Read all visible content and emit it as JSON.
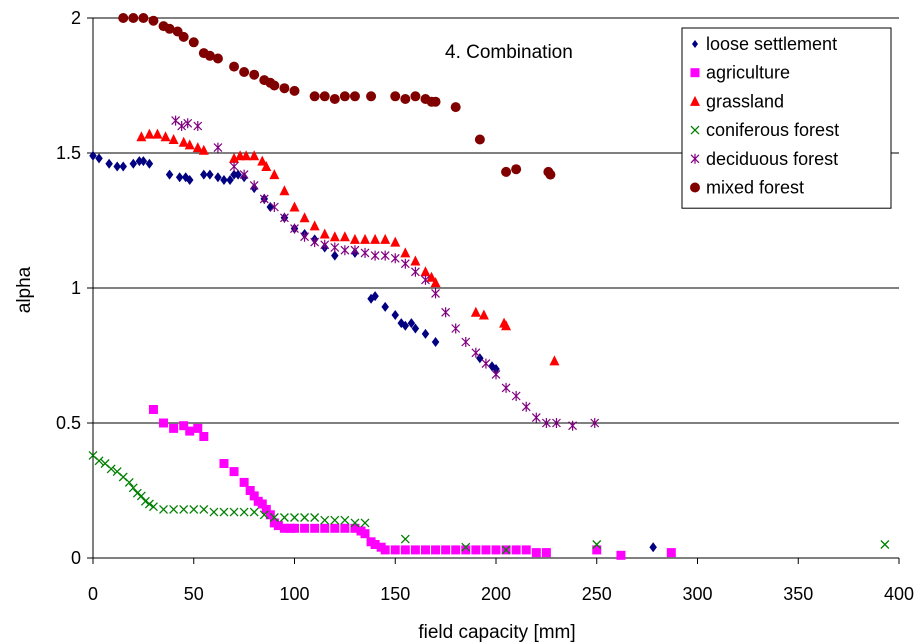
{
  "chart_data": {
    "type": "scatter",
    "title": "",
    "annotation": "4. Combination",
    "xlabel": "field capacity [mm]",
    "ylabel": "alpha",
    "xlim": [
      0,
      400
    ],
    "ylim": [
      0,
      2
    ],
    "x_ticks": [
      "0",
      "50",
      "100",
      "150",
      "200",
      "250",
      "300",
      "350",
      "400"
    ],
    "y_ticks": [
      "0",
      "0.5",
      "1",
      "1.5",
      "2"
    ],
    "grid": "horizontal",
    "legend_position": "top-right",
    "series": [
      {
        "name": "loose settlement",
        "marker": "diamond",
        "color": "#000080",
        "points": [
          [
            0,
            1.49
          ],
          [
            3,
            1.48
          ],
          [
            8,
            1.46
          ],
          [
            12,
            1.45
          ],
          [
            15,
            1.45
          ],
          [
            20,
            1.46
          ],
          [
            23,
            1.47
          ],
          [
            25,
            1.47
          ],
          [
            28,
            1.46
          ],
          [
            38,
            1.42
          ],
          [
            43,
            1.41
          ],
          [
            46,
            1.41
          ],
          [
            48,
            1.4
          ],
          [
            55,
            1.42
          ],
          [
            58,
            1.42
          ],
          [
            62,
            1.41
          ],
          [
            65,
            1.4
          ],
          [
            68,
            1.4
          ],
          [
            70,
            1.42
          ],
          [
            72,
            1.42
          ],
          [
            75,
            1.41
          ],
          [
            80,
            1.37
          ],
          [
            85,
            1.33
          ],
          [
            88,
            1.3
          ],
          [
            95,
            1.26
          ],
          [
            100,
            1.22
          ],
          [
            105,
            1.2
          ],
          [
            110,
            1.18
          ],
          [
            115,
            1.15
          ],
          [
            120,
            1.12
          ],
          [
            130,
            1.13
          ],
          [
            138,
            0.96
          ],
          [
            140,
            0.97
          ],
          [
            145,
            0.93
          ],
          [
            150,
            0.9
          ],
          [
            153,
            0.87
          ],
          [
            155,
            0.86
          ],
          [
            158,
            0.87
          ],
          [
            160,
            0.85
          ],
          [
            165,
            0.83
          ],
          [
            170,
            0.8
          ],
          [
            192,
            0.74
          ],
          [
            198,
            0.71
          ],
          [
            200,
            0.7
          ],
          [
            278,
            0.04
          ]
        ]
      },
      {
        "name": "agriculture",
        "marker": "square",
        "color": "#ff00ff",
        "points": [
          [
            30,
            0.55
          ],
          [
            35,
            0.5
          ],
          [
            40,
            0.48
          ],
          [
            45,
            0.49
          ],
          [
            48,
            0.47
          ],
          [
            52,
            0.48
          ],
          [
            55,
            0.45
          ],
          [
            65,
            0.35
          ],
          [
            70,
            0.32
          ],
          [
            75,
            0.28
          ],
          [
            78,
            0.25
          ],
          [
            80,
            0.23
          ],
          [
            82,
            0.21
          ],
          [
            84,
            0.2
          ],
          [
            86,
            0.18
          ],
          [
            88,
            0.16
          ],
          [
            90,
            0.13
          ],
          [
            92,
            0.12
          ],
          [
            95,
            0.11
          ],
          [
            98,
            0.11
          ],
          [
            100,
            0.11
          ],
          [
            105,
            0.11
          ],
          [
            110,
            0.11
          ],
          [
            115,
            0.11
          ],
          [
            120,
            0.11
          ],
          [
            125,
            0.11
          ],
          [
            130,
            0.11
          ],
          [
            133,
            0.1
          ],
          [
            135,
            0.09
          ],
          [
            138,
            0.06
          ],
          [
            140,
            0.05
          ],
          [
            143,
            0.04
          ],
          [
            145,
            0.03
          ],
          [
            150,
            0.03
          ],
          [
            155,
            0.03
          ],
          [
            160,
            0.03
          ],
          [
            165,
            0.03
          ],
          [
            170,
            0.03
          ],
          [
            175,
            0.03
          ],
          [
            180,
            0.03
          ],
          [
            185,
            0.03
          ],
          [
            190,
            0.03
          ],
          [
            195,
            0.03
          ],
          [
            200,
            0.03
          ],
          [
            205,
            0.03
          ],
          [
            210,
            0.03
          ],
          [
            215,
            0.03
          ],
          [
            220,
            0.02
          ],
          [
            225,
            0.02
          ],
          [
            250,
            0.03
          ],
          [
            262,
            0.01
          ],
          [
            287,
            0.02
          ]
        ]
      },
      {
        "name": "grassland",
        "marker": "triangle",
        "color": "#ff0000",
        "points": [
          [
            24,
            1.56
          ],
          [
            28,
            1.57
          ],
          [
            32,
            1.57
          ],
          [
            36,
            1.56
          ],
          [
            40,
            1.55
          ],
          [
            45,
            1.54
          ],
          [
            48,
            1.53
          ],
          [
            52,
            1.52
          ],
          [
            55,
            1.51
          ],
          [
            70,
            1.48
          ],
          [
            73,
            1.49
          ],
          [
            76,
            1.49
          ],
          [
            80,
            1.49
          ],
          [
            84,
            1.47
          ],
          [
            86,
            1.45
          ],
          [
            90,
            1.42
          ],
          [
            95,
            1.36
          ],
          [
            100,
            1.3
          ],
          [
            105,
            1.26
          ],
          [
            110,
            1.23
          ],
          [
            115,
            1.2
          ],
          [
            120,
            1.19
          ],
          [
            125,
            1.19
          ],
          [
            130,
            1.18
          ],
          [
            135,
            1.18
          ],
          [
            140,
            1.18
          ],
          [
            145,
            1.18
          ],
          [
            150,
            1.17
          ],
          [
            155,
            1.13
          ],
          [
            160,
            1.1
          ],
          [
            165,
            1.06
          ],
          [
            168,
            1.04
          ],
          [
            170,
            1.02
          ],
          [
            190,
            0.91
          ],
          [
            194,
            0.9
          ],
          [
            204,
            0.87
          ],
          [
            205,
            0.86
          ],
          [
            229,
            0.73
          ]
        ]
      },
      {
        "name": "coniferous forest",
        "marker": "x",
        "color": "#008000",
        "points": [
          [
            0,
            0.38
          ],
          [
            3,
            0.36
          ],
          [
            6,
            0.35
          ],
          [
            9,
            0.33
          ],
          [
            12,
            0.32
          ],
          [
            15,
            0.3
          ],
          [
            18,
            0.28
          ],
          [
            20,
            0.26
          ],
          [
            22,
            0.24
          ],
          [
            24,
            0.23
          ],
          [
            26,
            0.21
          ],
          [
            28,
            0.2
          ],
          [
            30,
            0.19
          ],
          [
            35,
            0.18
          ],
          [
            40,
            0.18
          ],
          [
            45,
            0.18
          ],
          [
            50,
            0.18
          ],
          [
            55,
            0.18
          ],
          [
            60,
            0.17
          ],
          [
            65,
            0.17
          ],
          [
            70,
            0.17
          ],
          [
            75,
            0.17
          ],
          [
            80,
            0.17
          ],
          [
            85,
            0.16
          ],
          [
            90,
            0.15
          ],
          [
            95,
            0.15
          ],
          [
            100,
            0.15
          ],
          [
            105,
            0.15
          ],
          [
            110,
            0.15
          ],
          [
            115,
            0.14
          ],
          [
            120,
            0.14
          ],
          [
            125,
            0.14
          ],
          [
            130,
            0.13
          ],
          [
            135,
            0.13
          ],
          [
            155,
            0.07
          ],
          [
            185,
            0.04
          ],
          [
            205,
            0.03
          ],
          [
            250,
            0.05
          ],
          [
            393,
            0.05
          ]
        ]
      },
      {
        "name": "deciduous forest",
        "marker": "star",
        "color": "#800080",
        "points": [
          [
            41,
            1.62
          ],
          [
            44,
            1.6
          ],
          [
            47,
            1.61
          ],
          [
            52,
            1.6
          ],
          [
            62,
            1.52
          ],
          [
            70,
            1.45
          ],
          [
            75,
            1.42
          ],
          [
            80,
            1.38
          ],
          [
            85,
            1.33
          ],
          [
            90,
            1.3
          ],
          [
            95,
            1.26
          ],
          [
            100,
            1.22
          ],
          [
            105,
            1.19
          ],
          [
            110,
            1.17
          ],
          [
            115,
            1.16
          ],
          [
            120,
            1.15
          ],
          [
            125,
            1.14
          ],
          [
            130,
            1.14
          ],
          [
            135,
            1.13
          ],
          [
            140,
            1.12
          ],
          [
            145,
            1.12
          ],
          [
            150,
            1.11
          ],
          [
            155,
            1.09
          ],
          [
            160,
            1.06
          ],
          [
            165,
            1.03
          ],
          [
            170,
            0.98
          ],
          [
            175,
            0.91
          ],
          [
            180,
            0.85
          ],
          [
            185,
            0.8
          ],
          [
            190,
            0.76
          ],
          [
            195,
            0.72
          ],
          [
            200,
            0.68
          ],
          [
            205,
            0.63
          ],
          [
            210,
            0.6
          ],
          [
            215,
            0.56
          ],
          [
            220,
            0.52
          ],
          [
            225,
            0.5
          ],
          [
            230,
            0.5
          ],
          [
            238,
            0.49
          ],
          [
            249,
            0.5
          ]
        ]
      },
      {
        "name": "mixed forest",
        "marker": "circle",
        "color": "#800000",
        "points": [
          [
            15,
            2.0
          ],
          [
            20,
            2.0
          ],
          [
            25,
            2.0
          ],
          [
            30,
            1.99
          ],
          [
            35,
            1.97
          ],
          [
            38,
            1.96
          ],
          [
            42,
            1.95
          ],
          [
            45,
            1.93
          ],
          [
            50,
            1.91
          ],
          [
            55,
            1.87
          ],
          [
            58,
            1.86
          ],
          [
            62,
            1.85
          ],
          [
            70,
            1.82
          ],
          [
            75,
            1.8
          ],
          [
            80,
            1.79
          ],
          [
            85,
            1.77
          ],
          [
            88,
            1.76
          ],
          [
            90,
            1.75
          ],
          [
            95,
            1.74
          ],
          [
            100,
            1.73
          ],
          [
            110,
            1.71
          ],
          [
            115,
            1.71
          ],
          [
            120,
            1.7
          ],
          [
            125,
            1.71
          ],
          [
            130,
            1.71
          ],
          [
            138,
            1.71
          ],
          [
            150,
            1.71
          ],
          [
            155,
            1.7
          ],
          [
            160,
            1.71
          ],
          [
            165,
            1.7
          ],
          [
            168,
            1.69
          ],
          [
            170,
            1.69
          ],
          [
            180,
            1.67
          ],
          [
            192,
            1.55
          ],
          [
            205,
            1.43
          ],
          [
            210,
            1.44
          ],
          [
            226,
            1.43
          ],
          [
            227,
            1.42
          ]
        ]
      }
    ]
  }
}
